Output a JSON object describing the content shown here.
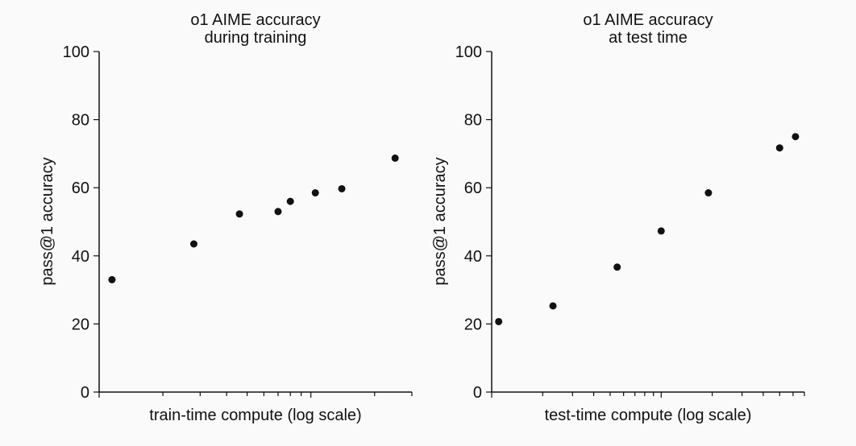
{
  "chart_data": [
    {
      "type": "scatter",
      "title_lines": [
        "o1 AIME accuracy",
        "during training"
      ],
      "xlabel": "train-time compute (log scale)",
      "ylabel": "pass@1 accuracy",
      "x_scale": "log",
      "x_tick_labels": "none",
      "ylim": [
        0,
        100
      ],
      "yticks": [
        0,
        20,
        40,
        60,
        80,
        100
      ],
      "grid": false,
      "legend": "none",
      "point_color": "#111111",
      "x": [
        1.15,
        2.8,
        4.6,
        7.0,
        8.0,
        10.5,
        14.0,
        25.0
      ],
      "y": [
        33,
        43.5,
        52.3,
        53,
        56,
        58.5,
        59.7,
        68.7
      ]
    },
    {
      "type": "scatter",
      "title_lines": [
        "o1 AIME accuracy",
        "at test time"
      ],
      "xlabel": "test-time compute (log scale)",
      "ylabel": "pass@1 accuracy",
      "x_scale": "log",
      "x_tick_labels": "none",
      "ylim": [
        0,
        100
      ],
      "yticks": [
        0,
        20,
        40,
        60,
        80,
        100
      ],
      "grid": false,
      "legend": "none",
      "point_color": "#111111",
      "x": [
        1.1,
        2.3,
        5.5,
        10.0,
        19.0,
        50.0,
        62.0
      ],
      "y": [
        20.7,
        25.3,
        36.7,
        47.3,
        58.5,
        71.7,
        75
      ]
    }
  ]
}
